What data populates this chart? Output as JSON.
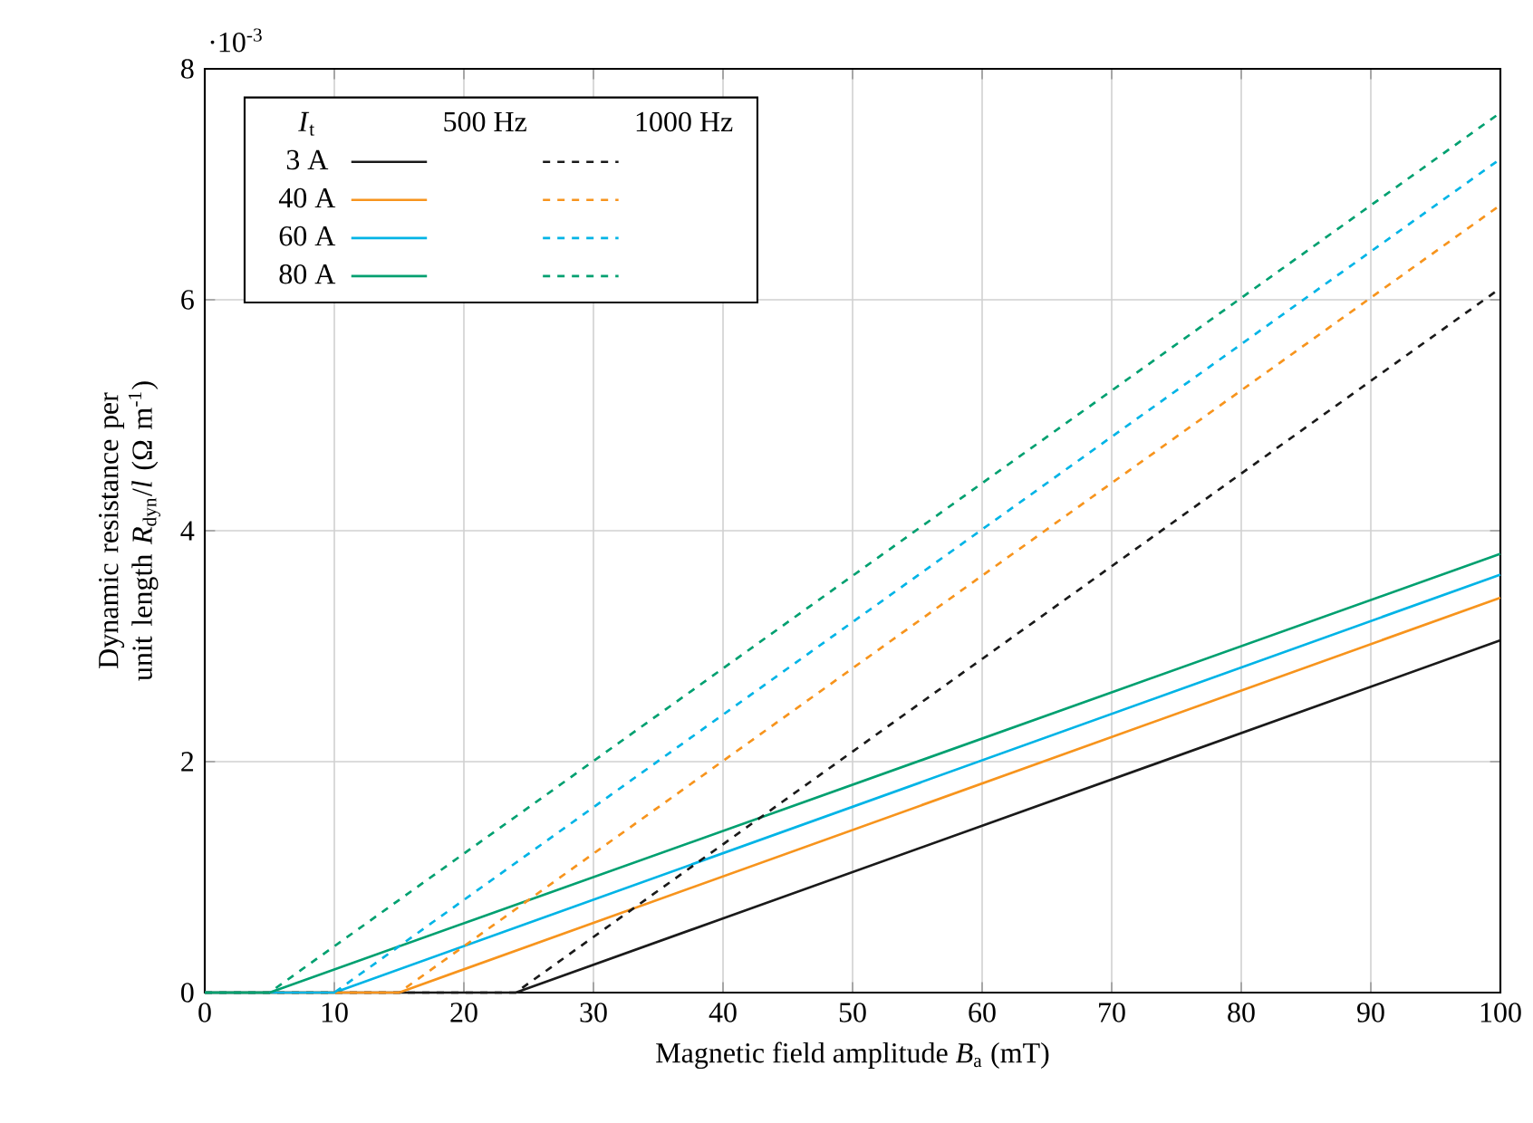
{
  "chart_data": {
    "type": "line",
    "xlabel": "Magnetic field amplitude *B*$_{a}$ (mT)",
    "ylabel": "Dynamic resistance per unit length *R*$_{dyn}$/*l* (Ω m$^{-1}$)",
    "legend_title": "*I*$_{t}$",
    "annotations": [
      "·10$^{-3}$",
      "500 Hz",
      "1000 Hz"
    ],
    "xlim": [
      0,
      100
    ],
    "xticks": [
      0,
      10,
      20,
      30,
      40,
      50,
      60,
      70,
      80,
      90,
      100
    ],
    "ylim": [
      0,
      8
    ],
    "yticks": [
      0,
      2,
      4,
      6,
      8
    ],
    "grid": true,
    "legend": "top left",
    "series": [
      {
        "name": "3 A",
        "color": "#1a1a1a",
        "line_style": "solid",
        "x": [
          0,
          24,
          100
        ],
        "values": [
          0,
          0,
          3.05
        ]
      },
      {
        "name": "40 A",
        "color": "#f7941d",
        "line_style": "solid",
        "x": [
          0,
          15,
          100
        ],
        "values": [
          0,
          0,
          3.42
        ]
      },
      {
        "name": "60 A",
        "color": "#00b4e6",
        "line_style": "solid",
        "x": [
          0,
          10,
          100
        ],
        "values": [
          0,
          0,
          3.62
        ]
      },
      {
        "name": "80 A",
        "color": "#00a070",
        "line_style": "solid",
        "x": [
          0,
          5,
          100
        ],
        "values": [
          0,
          0,
          3.8
        ]
      },
      {
        "color": "#1a1a1a",
        "line_style": "dashed",
        "x": [
          0,
          24,
          100
        ],
        "values": [
          0,
          0,
          6.1
        ]
      },
      {
        "color": "#f7941d",
        "line_style": "dashed",
        "x": [
          0,
          15,
          100
        ],
        "values": [
          0,
          0,
          6.82
        ]
      },
      {
        "color": "#00b4e6",
        "line_style": "dashed",
        "x": [
          0,
          10,
          100
        ],
        "values": [
          0,
          0,
          7.22
        ]
      },
      {
        "color": "#00a070",
        "line_style": "dashed",
        "x": [
          0,
          5,
          100
        ],
        "values": [
          0,
          0,
          7.62
        ]
      }
    ]
  }
}
